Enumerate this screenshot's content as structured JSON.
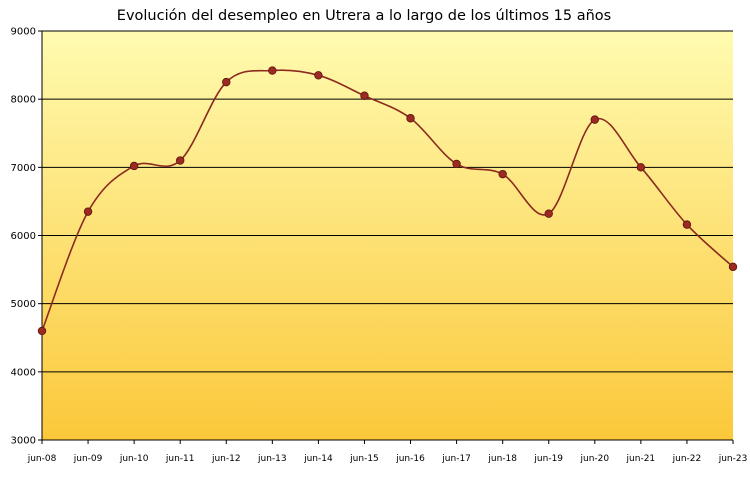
{
  "chart_data": {
    "type": "line",
    "title": "Evolución del desempleo en Utrera a lo largo de los últimos 15 años",
    "xlabel": "",
    "ylabel": "",
    "categories": [
      "jun-08",
      "jun-09",
      "jun-10",
      "jun-11",
      "jun-12",
      "jun-13",
      "jun-14",
      "jun-15",
      "jun-16",
      "jun-17",
      "jun-18",
      "jun-19",
      "jun-20",
      "jun-21",
      "jun-22",
      "jun-23"
    ],
    "series": [
      {
        "values": [
          4600,
          6350,
          7020,
          7100,
          8250,
          8420,
          8350,
          8050,
          7720,
          7050,
          6900,
          6320,
          7700,
          7000,
          6160,
          5540
        ]
      }
    ],
    "ylim": [
      3000,
      9000
    ],
    "yticks": [
      3000,
      4000,
      5000,
      6000,
      7000,
      8000,
      9000
    ],
    "grid": "horizontal",
    "legend": "none",
    "smooth": true,
    "colors": {
      "line": "#8b2a1f",
      "marker_fill": "#9c2a22",
      "marker_stroke": "#5a120c",
      "grid": "#000000",
      "bg_top": "#fffbb0",
      "bg_bottom": "#fbc83a"
    }
  }
}
